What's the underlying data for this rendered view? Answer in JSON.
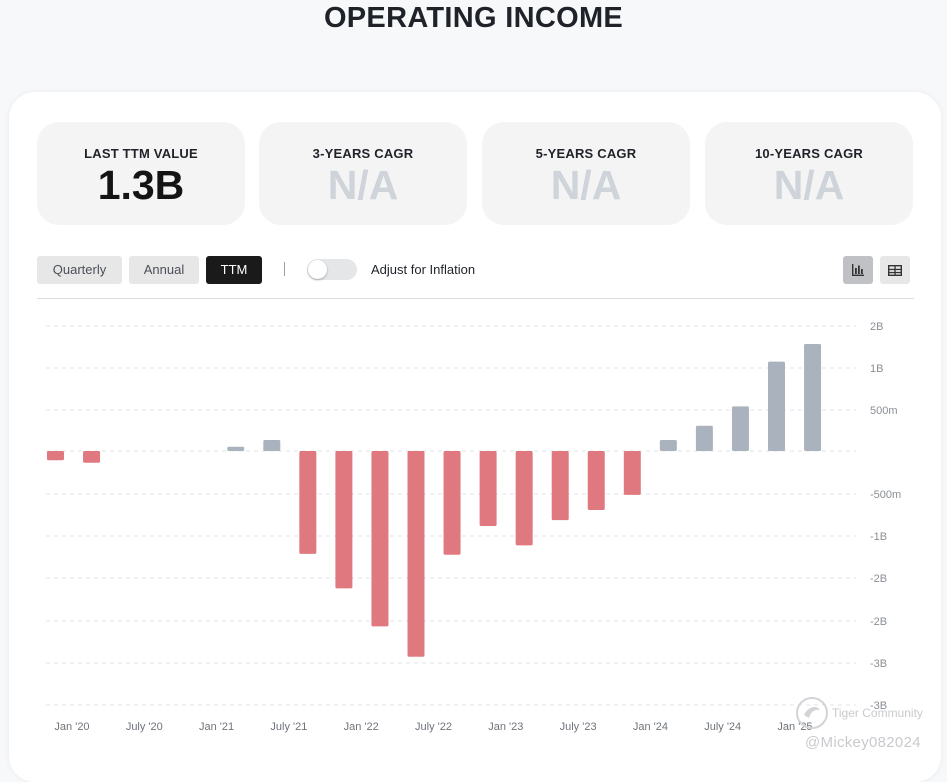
{
  "page": {
    "title": "OPERATING INCOME"
  },
  "stats": [
    {
      "label": "LAST TTM VALUE",
      "value": "1.3B"
    },
    {
      "label": "3-YEARS CAGR",
      "value": "N/A"
    },
    {
      "label": "5-YEARS CAGR",
      "value": "N/A"
    },
    {
      "label": "10-YEARS CAGR",
      "value": "N/A"
    }
  ],
  "controls": {
    "period_buttons": [
      "Quarterly",
      "Annual",
      "TTM"
    ],
    "active_period": "TTM",
    "separator": "|",
    "inflation_label": "Adjust for Inflation",
    "inflation_on": false,
    "view_icons": [
      "bar-chart-icon",
      "table-icon"
    ],
    "active_view": "bar-chart-icon"
  },
  "colors": {
    "positive": "#aab3bd",
    "negative": "#e07880",
    "accent": "#1a1a1a"
  },
  "watermark": {
    "brand": "Tiger Community",
    "handle": "@Mickey082024"
  },
  "chart_data": {
    "type": "bar",
    "unit": "USD",
    "x_tick_labels": [
      "Jan '20",
      "July '20",
      "Jan '21",
      "July '21",
      "Jan '22",
      "July '22",
      "Jan '23",
      "July '23",
      "Jan '24",
      "July '24",
      "Jan '25"
    ],
    "y_tick_labels": [
      "2B",
      "1B",
      "500m",
      "",
      "-500m",
      "-1B",
      "-2B",
      "-2B",
      "-3B",
      "-3B"
    ],
    "ylim": [
      -3000,
      1500
    ],
    "grid": true,
    "series": [
      {
        "values": [
          -0.11,
          -0.14,
          null,
          null,
          null,
          0.05,
          0.13,
          -1.22,
          -1.63,
          -2.08,
          -2.44,
          -1.23,
          -0.89,
          -1.12,
          -0.82,
          -0.7,
          -0.52,
          0.13,
          0.3,
          0.53,
          1.06,
          1.27
        ]
      }
    ],
    "value_unit": "B"
  }
}
